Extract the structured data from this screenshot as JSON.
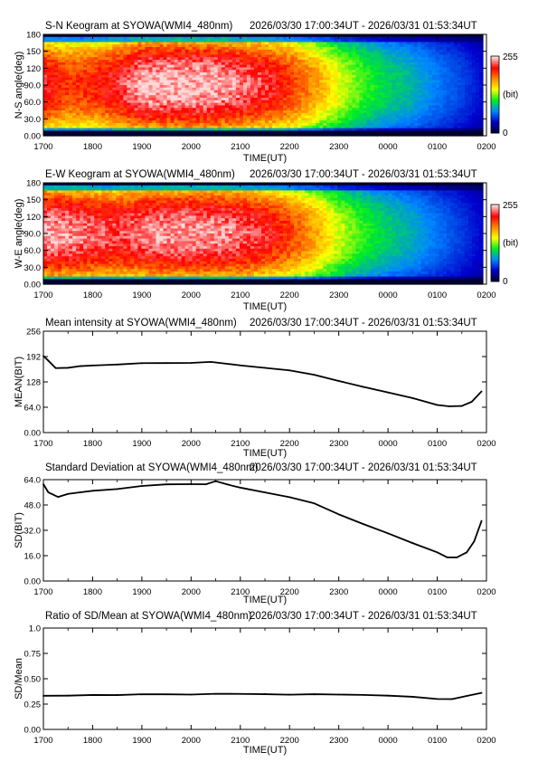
{
  "colors": {
    "keogram_scale": [
      "#000033",
      "#0000cc",
      "#0088ff",
      "#00ee22",
      "#ffff00",
      "#ff8800",
      "#ff0000",
      "#ffd8d8"
    ],
    "line": "#000000"
  },
  "colorbar": {
    "max_label": "255",
    "min_label": "0",
    "unit_label": "(bit)"
  },
  "chart_data": [
    {
      "type": "heatmap",
      "title": "S-N Keogram at SYOWA(WMI4_480nm)",
      "time_range": "2026/03/30 17:00:34UT - 2026/03/31 01:53:34UT",
      "xlabel": "TIME(UT)",
      "ylabel": "N-S angle(deg)",
      "xticks": [
        "1700",
        "1800",
        "1900",
        "2000",
        "2100",
        "2200",
        "2300",
        "0000",
        "0100",
        "0200"
      ],
      "yticks": [
        "0.00",
        "30.0",
        "60.0",
        "90.0",
        "120",
        "150",
        "180"
      ],
      "ylim": [
        0,
        180
      ],
      "colorbar_range": [
        0,
        255
      ],
      "time_hours": [
        17.0,
        17.5,
        18.0,
        18.5,
        19.0,
        19.5,
        20.0,
        20.5,
        21.0,
        21.5,
        22.0,
        22.5,
        23.0,
        23.5,
        24.0,
        24.5,
        25.0,
        25.5,
        25.9
      ],
      "center_intensity": [
        225,
        205,
        210,
        225,
        250,
        252,
        252,
        250,
        240,
        228,
        208,
        178,
        145,
        118,
        100,
        88,
        70,
        55,
        40
      ]
    },
    {
      "type": "heatmap",
      "title": "E-W Keogram at SYOWA(WMI4_480nm)",
      "time_range": "2026/03/30 17:00:34UT - 2026/03/31 01:53:34UT",
      "xlabel": "TIME(UT)",
      "ylabel": "W-E angle(deg)",
      "xticks": [
        "1700",
        "1800",
        "1900",
        "2000",
        "2100",
        "2200",
        "2300",
        "0000",
        "0100",
        "0200"
      ],
      "yticks": [
        "0.00",
        "30.0",
        "60.0",
        "90.0",
        "120",
        "150",
        "180"
      ],
      "ylim": [
        0,
        180
      ],
      "colorbar_range": [
        0,
        255
      ],
      "time_hours": [
        17.0,
        17.5,
        18.0,
        18.5,
        19.0,
        19.5,
        20.0,
        20.5,
        21.0,
        21.5,
        22.0,
        22.5,
        23.0,
        23.5,
        24.0,
        24.5,
        25.0,
        25.5,
        25.9
      ],
      "center_intensity": [
        248,
        245,
        235,
        230,
        240,
        245,
        245,
        242,
        238,
        225,
        205,
        175,
        140,
        115,
        98,
        85,
        68,
        52,
        38
      ]
    },
    {
      "type": "line",
      "title": "Mean intensity at SYOWA(WMI4_480nm)",
      "time_range": "2026/03/30 17:00:34UT - 2026/03/31 01:53:34UT",
      "xlabel": "TIME(UT)",
      "ylabel": "MEAN(BIT)",
      "xticks": [
        "1700",
        "1800",
        "1900",
        "2000",
        "2100",
        "2200",
        "2300",
        "0000",
        "0100",
        "0200"
      ],
      "yticks": [
        "0.00",
        "64.0",
        "128",
        "192",
        "256"
      ],
      "ylim": [
        0,
        256
      ],
      "x": [
        17.0,
        17.1,
        17.25,
        17.5,
        17.75,
        18.0,
        18.5,
        19.0,
        19.5,
        20.0,
        20.4,
        20.75,
        21.0,
        21.5,
        22.0,
        22.5,
        23.0,
        23.5,
        24.0,
        24.5,
        25.0,
        25.25,
        25.5,
        25.7,
        25.9
      ],
      "values": [
        193,
        182,
        163,
        164,
        168,
        170,
        172,
        175,
        176,
        176,
        178,
        173,
        170,
        164,
        157,
        146,
        131,
        115,
        101,
        87,
        70,
        66,
        67,
        78,
        104
      ]
    },
    {
      "type": "line",
      "title": "Standard Deviation at SYOWA(WMI4_480nm)",
      "time_range": "2026/03/30 17:00:34UT - 2026/03/31 01:53:34UT",
      "xlabel": "TIME(UT)",
      "ylabel": "SD(BIT)",
      "xticks": [
        "1700",
        "1800",
        "1900",
        "2000",
        "2100",
        "2200",
        "2300",
        "0000",
        "0100",
        "0200"
      ],
      "yticks": [
        "0.00",
        "16.0",
        "32.0",
        "48.0",
        "64.0"
      ],
      "ylim": [
        0,
        64
      ],
      "x": [
        17.0,
        17.1,
        17.3,
        17.5,
        17.75,
        18.0,
        18.5,
        19.0,
        19.5,
        20.0,
        20.3,
        20.5,
        20.75,
        21.0,
        21.5,
        22.0,
        22.5,
        23.0,
        23.5,
        24.0,
        24.5,
        25.0,
        25.2,
        25.4,
        25.6,
        25.75,
        25.9
      ],
      "values": [
        61,
        56,
        53,
        55,
        56,
        57,
        58,
        60,
        61,
        61,
        61,
        63,
        61,
        59,
        56,
        53,
        49,
        42,
        36,
        30,
        24,
        18,
        15,
        15,
        18,
        25,
        38
      ]
    },
    {
      "type": "line",
      "title": "Ratio of SD/Mean at SYOWA(WMI4_480nm)",
      "time_range": "2026/03/30 17:00:34UT - 2026/03/31 01:53:34UT",
      "xlabel": "TIME(UT)",
      "ylabel": "SD/Mean",
      "xticks": [
        "1700",
        "1800",
        "1900",
        "2000",
        "2100",
        "2200",
        "2300",
        "0000",
        "0100",
        "0200"
      ],
      "yticks": [
        "0.00",
        "0.25",
        "0.50",
        "0.75",
        "1.0"
      ],
      "ylim": [
        0,
        1.0
      ],
      "x": [
        17.0,
        17.5,
        18.0,
        18.5,
        19.0,
        19.5,
        20.0,
        20.5,
        21.0,
        21.5,
        22.0,
        22.5,
        23.0,
        23.5,
        24.0,
        24.5,
        25.0,
        25.3,
        25.6,
        25.9
      ],
      "values": [
        0.33,
        0.335,
        0.34,
        0.34,
        0.345,
        0.345,
        0.345,
        0.35,
        0.35,
        0.35,
        0.345,
        0.345,
        0.345,
        0.34,
        0.335,
        0.32,
        0.3,
        0.3,
        0.33,
        0.36
      ]
    }
  ]
}
